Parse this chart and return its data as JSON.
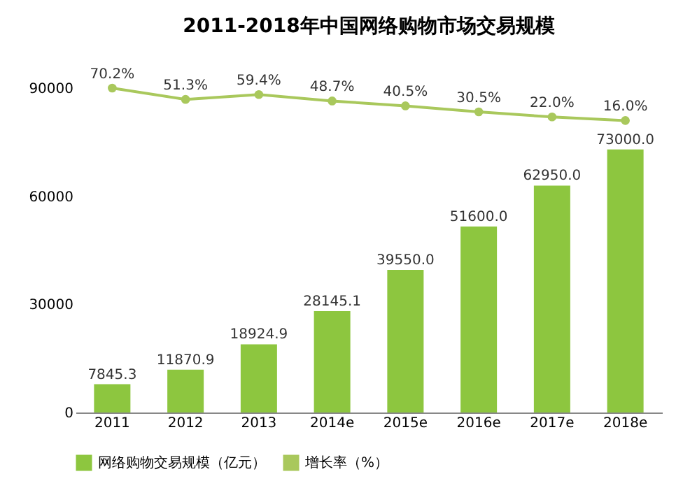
{
  "chart_data": {
    "type": "bar",
    "title": "2011-2018年中国网络购物市场交易规模",
    "categories": [
      "2011",
      "2012",
      "2013",
      "2014e",
      "2015e",
      "2016e",
      "2017e",
      "2018e"
    ],
    "series": [
      {
        "name": "网络购物交易规模（亿元）",
        "type": "bar",
        "color": "#8dc63f",
        "values": [
          7845.3,
          11870.9,
          18924.9,
          28145.1,
          39550.0,
          51600.0,
          62950.0,
          73000.0
        ],
        "value_labels": [
          "7845.3",
          "11870.9",
          "18924.9",
          "28145.1",
          "39550.0",
          "51600.0",
          "62950.0",
          "73000.0"
        ]
      },
      {
        "name": "增长率（%）",
        "type": "line",
        "axis": "y2",
        "color": "#a9c85c",
        "marker": "circle",
        "values": [
          70.2,
          51.3,
          59.4,
          48.7,
          40.5,
          30.5,
          22.0,
          16.0
        ],
        "value_labels": [
          "70.2%",
          "51.3%",
          "59.4%",
          "48.7%",
          "40.5%",
          "30.5%",
          "22.0%",
          "16.0%"
        ]
      }
    ],
    "ylim": [
      0,
      90000
    ],
    "yticks": [
      0,
      30000,
      60000,
      90000
    ],
    "grid": false,
    "legend": "bottom"
  }
}
